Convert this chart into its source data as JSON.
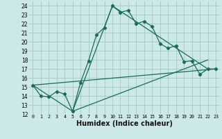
{
  "xlabel": "Humidex (Indice chaleur)",
  "xlim": [
    -0.5,
    23.5
  ],
  "ylim": [
    12,
    24.5
  ],
  "yticks": [
    12,
    13,
    14,
    15,
    16,
    17,
    18,
    19,
    20,
    21,
    22,
    23,
    24
  ],
  "xticks": [
    0,
    1,
    2,
    3,
    4,
    5,
    6,
    7,
    8,
    9,
    10,
    11,
    12,
    13,
    14,
    15,
    16,
    17,
    18,
    19,
    20,
    21,
    22,
    23
  ],
  "bg_color": "#cce8e8",
  "grid_color": "#a8cccc",
  "line_color": "#1a6b5a",
  "line1_x": [
    0,
    1,
    2,
    3,
    4,
    5,
    6,
    7,
    8,
    9,
    10,
    11,
    12,
    13,
    14,
    15,
    16,
    17,
    18,
    19,
    20,
    21,
    22,
    23
  ],
  "line1_y": [
    15.2,
    14.0,
    13.9,
    14.5,
    14.2,
    12.3,
    15.5,
    17.9,
    20.8,
    21.6,
    24.0,
    23.3,
    23.5,
    22.0,
    22.3,
    21.7,
    19.8,
    19.3,
    19.6,
    17.8,
    17.9,
    16.4,
    17.0,
    17.0
  ],
  "line2_x": [
    0,
    23
  ],
  "line2_y": [
    15.2,
    17.0
  ],
  "line3_x": [
    5,
    22
  ],
  "line3_y": [
    12.3,
    18.0
  ],
  "line4_x": [
    0,
    5,
    10,
    22
  ],
  "line4_y": [
    15.2,
    12.3,
    24.0,
    17.0
  ]
}
